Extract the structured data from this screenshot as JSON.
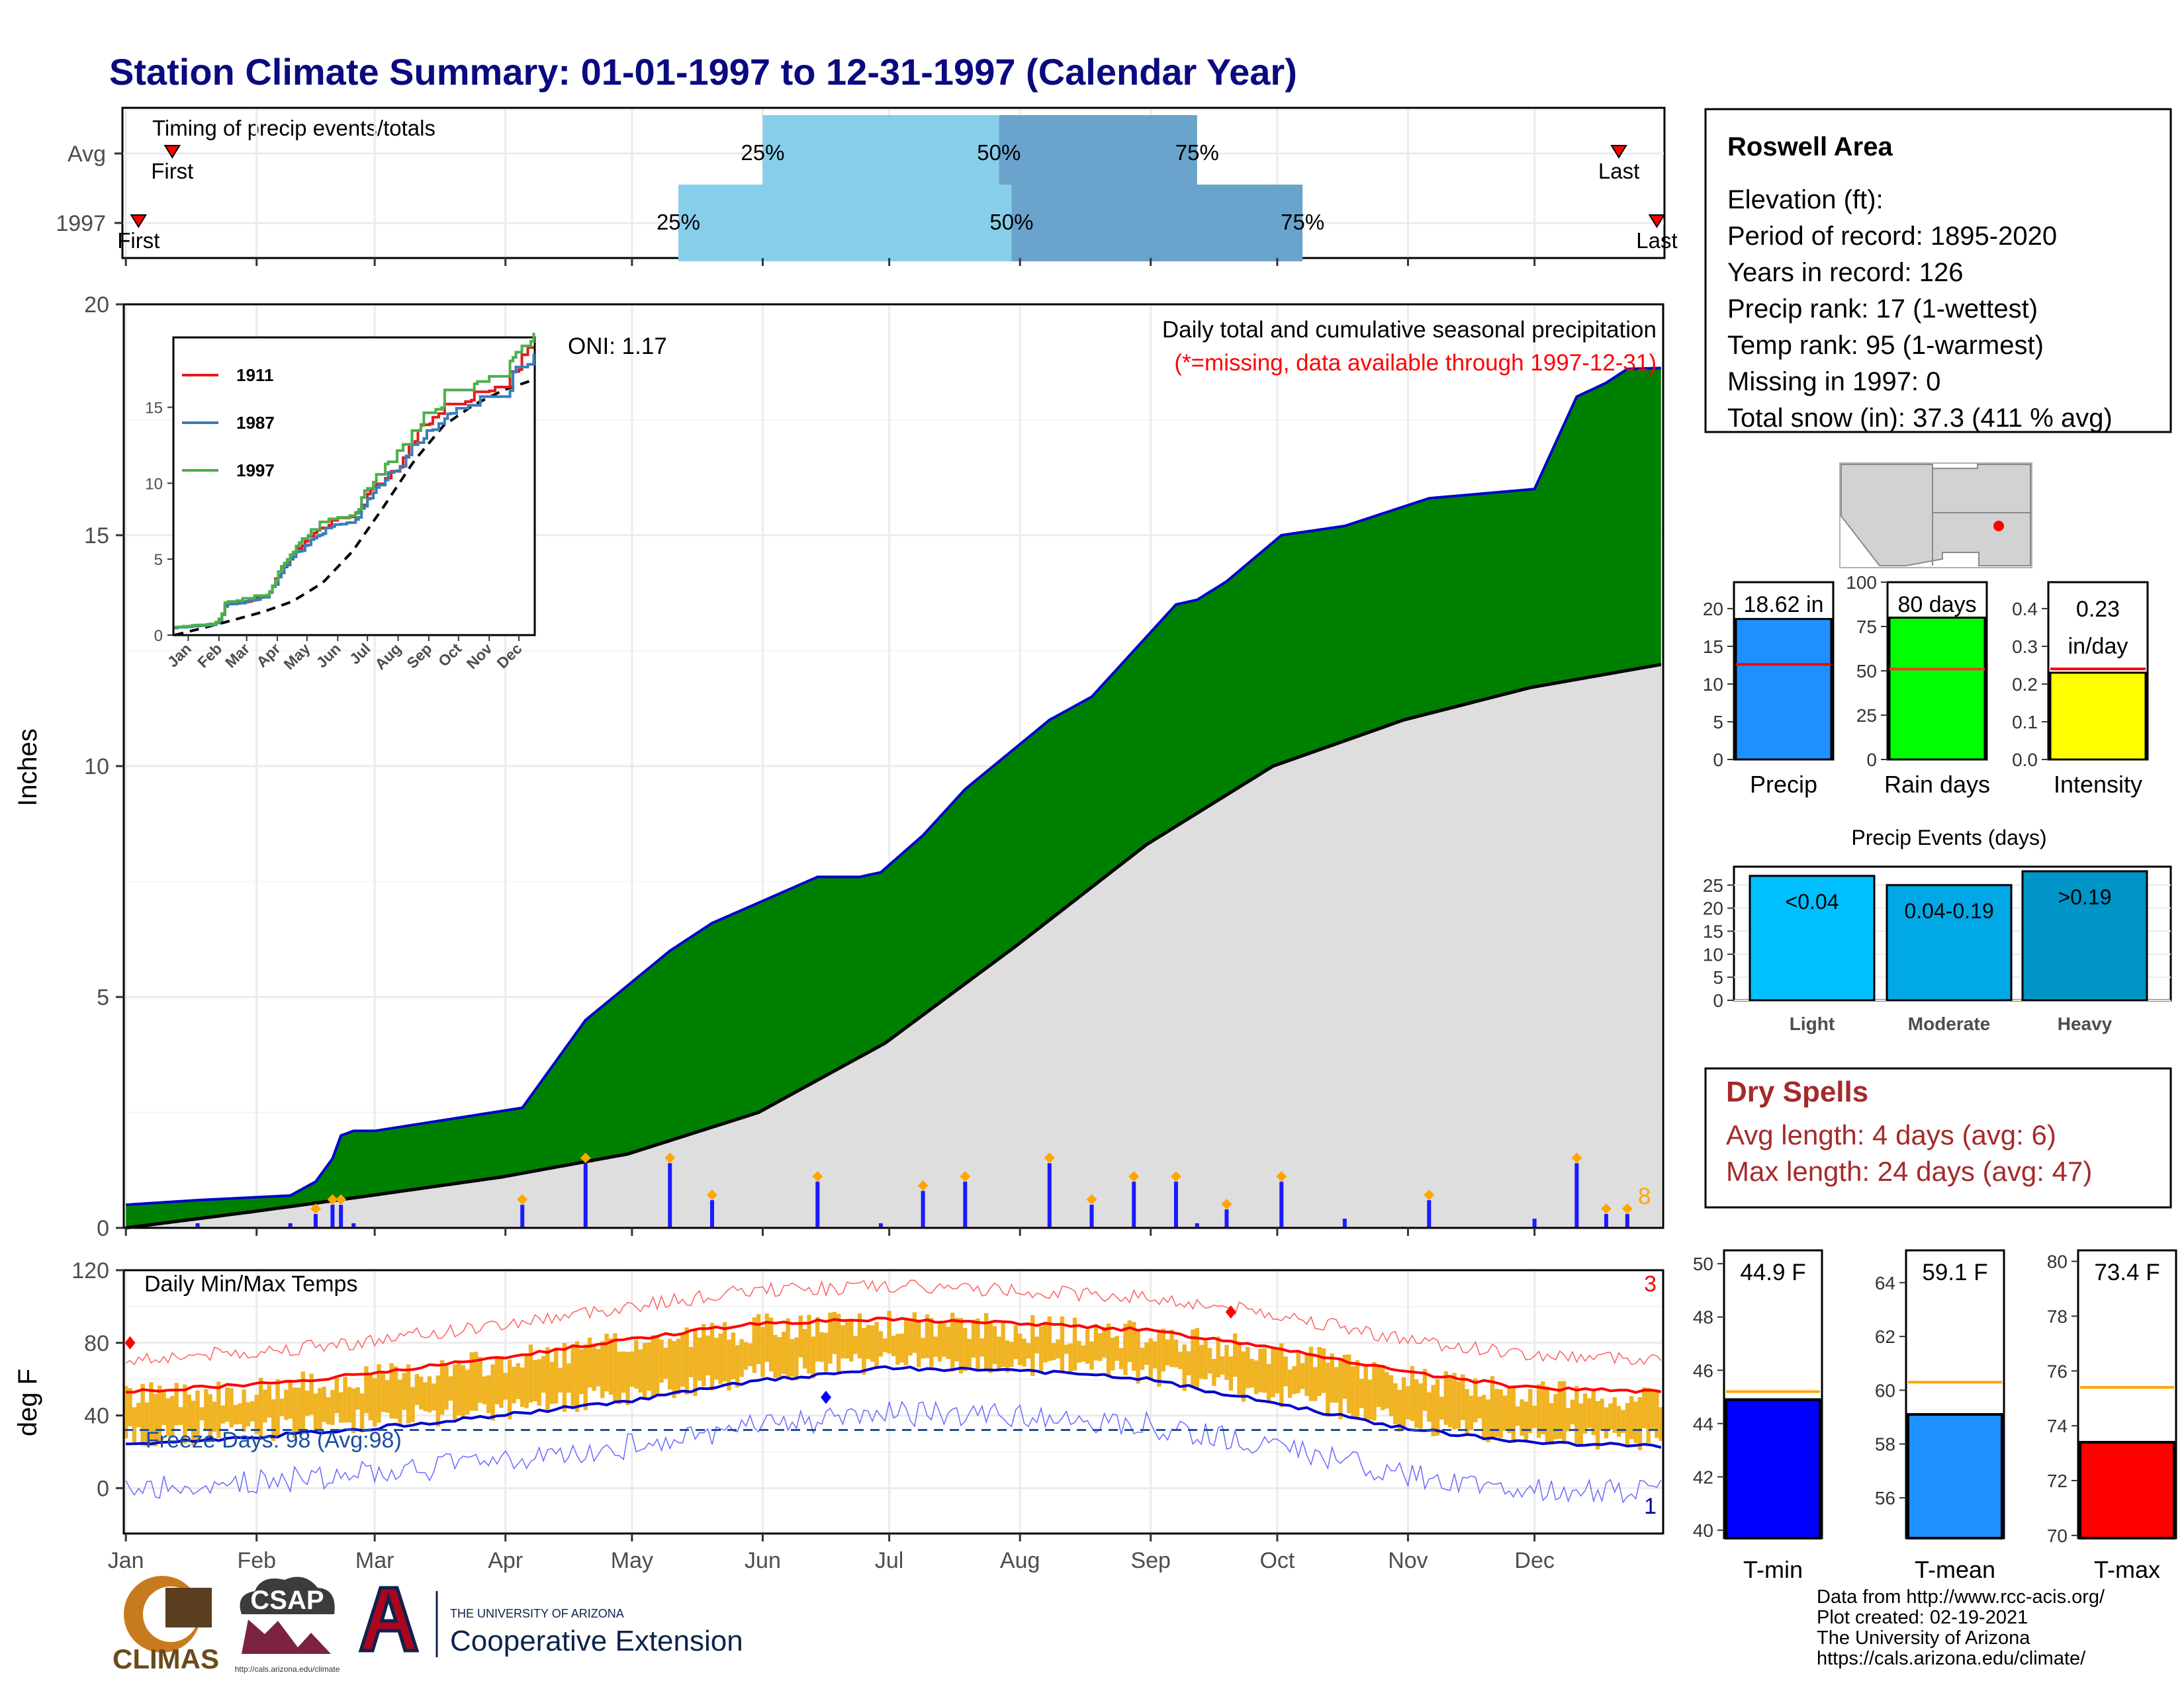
{
  "title": "Station Climate Summary: 01-01-1997 to 12-31-1997 (Calendar Year)",
  "months": [
    "Jan",
    "Feb",
    "Mar",
    "Apr",
    "May",
    "Jun",
    "Jul",
    "Aug",
    "Sep",
    "Oct",
    "Nov",
    "Dec"
  ],
  "timing": {
    "title": "Timing of precip events/totals",
    "rows": [
      {
        "label": "Avg",
        "first_doy": 12,
        "q25_doy": 152,
        "q50_doy": 208,
        "q75_doy": 255,
        "last_doy": 355
      },
      {
        "label": "1997",
        "first_doy": 4,
        "q25_doy": 132,
        "q50_doy": 211,
        "q75_doy": 280,
        "last_doy": 364
      }
    ],
    "first_label": "First",
    "last_label": "Last",
    "q25_label": "25%",
    "q50_label": "50%",
    "q75_label": "75%"
  },
  "station": {
    "name": "Roswell Area",
    "lines": [
      "Elevation (ft):",
      "Period of record: 1895-2020",
      "Years in record: 126",
      "Precip rank: 17 (1-wettest)",
      "Temp rank: 95 (1-warmest)",
      "Missing in 1997: 0",
      "Total snow (in): 37.3 (411 % avg)"
    ]
  },
  "precip_chart": {
    "ylabel": "Inches",
    "oni": "ONI: 1.17",
    "caption1": "Daily total and cumulative seasonal precipitation",
    "caption2": "(*=missing, data available through 1997-12-31)",
    "orange_count": "8",
    "ylim": [
      0,
      20
    ],
    "yticks": [
      0,
      5,
      10,
      15,
      20
    ],
    "colors": {
      "observed": "#008000",
      "normal": "#dedede",
      "daily": "#1a1aff",
      "extreme": "#ffa500"
    }
  },
  "inset": {
    "series": [
      {
        "name": "1911",
        "color": "#e41a1c"
      },
      {
        "name": "1987",
        "color": "#377eb8"
      },
      {
        "name": "1997",
        "color": "#4daf4a"
      }
    ],
    "yticks": [
      0,
      5,
      10,
      15
    ]
  },
  "temp_chart": {
    "title": "Daily Min/Max Temps",
    "ylabel": "deg F",
    "freeze_label": "Freeze Days: 98 (Avg:98)",
    "freeze_line_f": 32,
    "record_high_count": "3",
    "record_low_count": "1",
    "ylim": [
      -25,
      120
    ],
    "yticks": [
      0,
      40,
      80,
      120
    ]
  },
  "bars_precip": [
    {
      "name": "precip",
      "value": 18.62,
      "label": "18.62 in",
      "avg": 12.6,
      "color": "#1e90ff",
      "ylim": [
        0,
        23.5
      ],
      "yticks": [
        0,
        5,
        10,
        15,
        20
      ],
      "xlabel": "Precip"
    },
    {
      "name": "raindays",
      "value": 80,
      "label": "80 days",
      "avg": 51,
      "color": "#00ff00",
      "ylim": [
        0,
        100
      ],
      "yticks": [
        0,
        25,
        50,
        75,
        100
      ],
      "xlabel": "Rain days"
    },
    {
      "name": "intensity",
      "value": 0.23,
      "label": "0.23 in/day",
      "label1": "0.23",
      "label2": "in/day",
      "avg": 0.24,
      "color": "#ffff00",
      "ylim": [
        0,
        0.47
      ],
      "yticks": [
        0.0,
        0.1,
        0.2,
        0.3,
        0.4
      ],
      "xlabel": "Intensity"
    }
  ],
  "events": {
    "title": "Precip Events (days)",
    "ylim": [
      0,
      29
    ],
    "yticks": [
      0,
      5,
      10,
      15,
      20,
      25
    ],
    "bars": [
      {
        "category": "Light",
        "label": "<0.04",
        "value": 27,
        "color": "#00bfff"
      },
      {
        "category": "Moderate",
        "label": "0.04-0.19",
        "value": 25,
        "color": "#00a9e6"
      },
      {
        "category": "Heavy",
        "label": ">0.19",
        "value": 28,
        "color": "#0095c7"
      }
    ]
  },
  "dry_spells": {
    "title": "Dry Spells",
    "avg_line": "Avg length: 4 days (avg: 6)",
    "max_line": "Max length: 24 days (avg: 47)"
  },
  "temp_bars": [
    {
      "name": "tmin",
      "value": 44.9,
      "label": "44.9 F",
      "avg": 45.2,
      "color": "#0000ff",
      "ylim": [
        39.7,
        50.5
      ],
      "yticks": [
        40,
        42,
        44,
        46,
        48,
        50
      ],
      "xlabel": "T-min"
    },
    {
      "name": "tmean",
      "value": 59.1,
      "label": "59.1 F",
      "avg": 60.3,
      "color": "#1e90ff",
      "ylim": [
        54.5,
        65.2
      ],
      "yticks": [
        56,
        58,
        60,
        62,
        64
      ],
      "xlabel": "T-mean"
    },
    {
      "name": "tmax",
      "value": 73.4,
      "label": "73.4 F",
      "avg": 75.4,
      "color": "#ff0000",
      "ylim": [
        69.9,
        80.4
      ],
      "yticks": [
        70,
        72,
        74,
        76,
        78,
        80
      ],
      "xlabel": "T-max"
    }
  ],
  "footer": {
    "lines": [
      "Data from http://www.rcc-acis.org/",
      "Plot created: 02-19-2021",
      "The University of Arizona",
      "https://cals.arizona.edu/climate/"
    ]
  },
  "logos": {
    "climas": "CLIMAS",
    "csap": "CSAP",
    "csap_url": "http://cals.arizona.edu/climate",
    "ua_small": "THE UNIVERSITY OF ARIZONA",
    "ua_big": "Cooperative Extension"
  },
  "chart_data": [
    {
      "type": "area",
      "title": "Daily total and cumulative seasonal precipitation",
      "ylabel": "Inches",
      "ylim": [
        0,
        20
      ],
      "series": [
        {
          "name": "Cumulative 1997",
          "x": [
            1,
            18,
            40,
            46,
            50,
            52,
            55,
            60,
            95,
            110,
            130,
            140,
            165,
            175,
            180,
            190,
            200,
            220,
            230,
            240,
            250,
            255,
            262,
            275,
            290,
            310,
            335,
            345,
            352,
            357,
            365
          ],
          "values": [
            0.5,
            0.6,
            0.7,
            1.0,
            1.5,
            2.0,
            2.1,
            2.1,
            2.6,
            4.5,
            6.0,
            6.6,
            7.6,
            7.6,
            7.7,
            8.5,
            9.5,
            11.0,
            11.5,
            12.5,
            13.5,
            13.6,
            14.0,
            15.0,
            15.2,
            15.8,
            16.0,
            18.0,
            18.3,
            18.6,
            18.62
          ]
        },
        {
          "name": "Average cumulative",
          "x": [
            1,
            31,
            59,
            90,
            120,
            151,
            181,
            212,
            243,
            273,
            304,
            334,
            365
          ],
          "values": [
            0.0,
            0.35,
            0.7,
            1.1,
            1.6,
            2.5,
            4.0,
            6.1,
            8.3,
            10.0,
            11.0,
            11.7,
            12.2
          ]
        }
      ]
    },
    {
      "type": "line",
      "title": "Daily Min/Max Temps",
      "ylabel": "deg F",
      "ylim": [
        -25,
        120
      ],
      "series": [
        {
          "name": "Normal max",
          "x": [
            1,
            31,
            59,
            90,
            120,
            151,
            181,
            212,
            243,
            273,
            304,
            334,
            365
          ],
          "values": [
            53,
            57,
            63,
            72,
            82,
            91,
            93,
            91,
            87,
            78,
            64,
            55,
            53
          ]
        },
        {
          "name": "Normal min",
          "x": [
            1,
            31,
            59,
            90,
            120,
            151,
            181,
            212,
            243,
            273,
            304,
            334,
            365
          ],
          "values": [
            24,
            28,
            33,
            40,
            48,
            59,
            66,
            65,
            60,
            47,
            33,
            25,
            23
          ]
        }
      ]
    }
  ]
}
